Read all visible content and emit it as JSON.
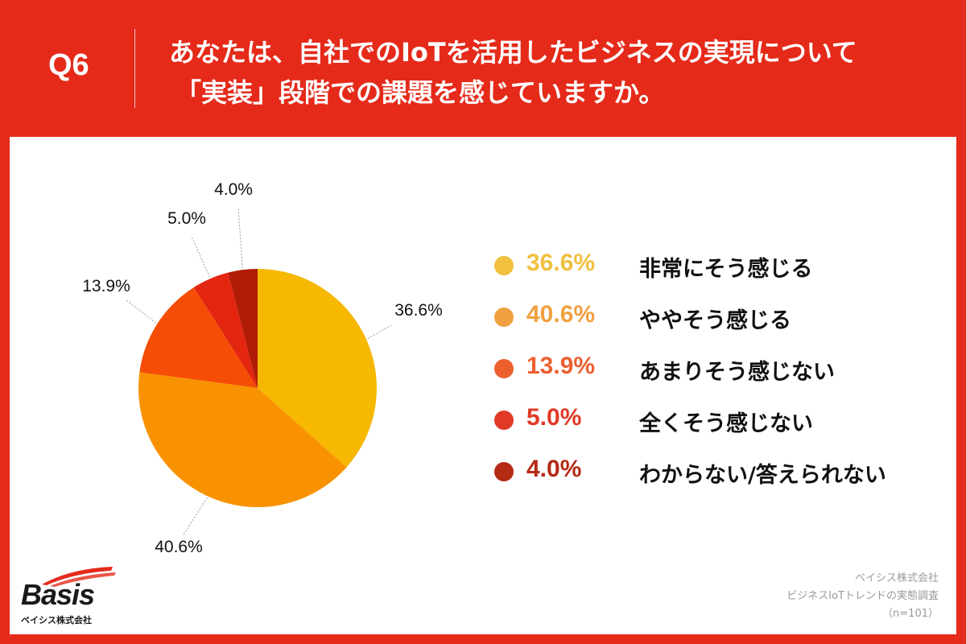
{
  "header": {
    "question_number": "Q6",
    "title_line1": "あなたは、自社でのIoTを活用したビジネスの実現について",
    "title_line2": "「実装」段階での課題を感じていますか。"
  },
  "colors": {
    "background": "#e52a1a",
    "panel": "#ffffff"
  },
  "chart_data": {
    "type": "pie",
    "start": "12 o'clock, clockwise",
    "slices": [
      {
        "label": "非常にそう感じる",
        "value": 36.6,
        "value_text": "36.6%",
        "color": "#f6b800",
        "legend_color": "#f0c03e"
      },
      {
        "label": "ややそう感じる",
        "value": 40.6,
        "value_text": "40.6%",
        "color": "#f99200",
        "legend_color": "#f0a040"
      },
      {
        "label": "あまりそう感じない",
        "value": 13.9,
        "value_text": "13.9%",
        "color": "#f54d05",
        "legend_color": "#ec6030"
      },
      {
        "label": "全くそう感じない",
        "value": 5.0,
        "value_text": "5.0%",
        "color": "#e42610",
        "legend_color": "#e03a26"
      },
      {
        "label": "わからない/答えられない",
        "value": 4.0,
        "value_text": "4.0%",
        "color": "#b01c07",
        "legend_color": "#b42a14"
      }
    ]
  },
  "logo": {
    "name": "Basis",
    "subtitle": "ベイシス株式会社"
  },
  "source": {
    "company": "ベイシス株式会社",
    "survey": "ビジネスIoTトレンドの実態調査",
    "sample": "（n=101）"
  }
}
